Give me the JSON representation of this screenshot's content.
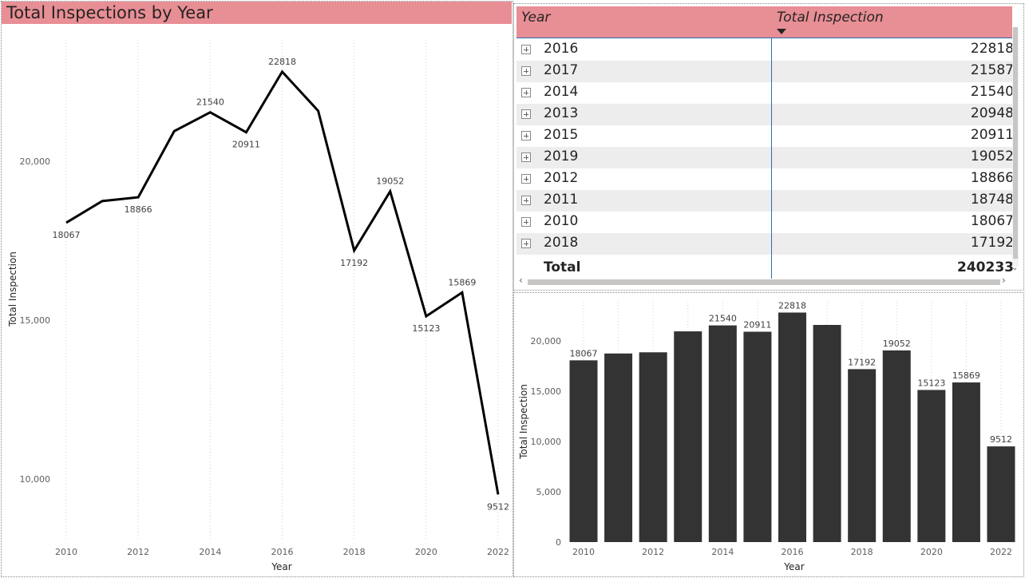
{
  "line_chart": {
    "title": "Total Inspections by Year"
  },
  "table": {
    "headers": {
      "year": "Year",
      "total": "Total Inspection"
    },
    "rows": [
      {
        "year": "2016",
        "total": "22818"
      },
      {
        "year": "2017",
        "total": "21587"
      },
      {
        "year": "2014",
        "total": "21540"
      },
      {
        "year": "2013",
        "total": "20948"
      },
      {
        "year": "2015",
        "total": "20911"
      },
      {
        "year": "2019",
        "total": "19052"
      },
      {
        "year": "2012",
        "total": "18866"
      },
      {
        "year": "2011",
        "total": "18748"
      },
      {
        "year": "2010",
        "total": "18067"
      },
      {
        "year": "2018",
        "total": "17192"
      }
    ],
    "total_label": "Total",
    "total_value": "240233"
  },
  "chart_data": [
    {
      "type": "line",
      "title": "Total Inspections by Year",
      "xlabel": "Year",
      "ylabel": "Total Inspection",
      "x": [
        2010,
        2011,
        2012,
        2013,
        2014,
        2015,
        2016,
        2017,
        2018,
        2019,
        2020,
        2021,
        2022
      ],
      "values": [
        18067,
        18748,
        18866,
        20948,
        21540,
        20911,
        22818,
        21587,
        17192,
        19052,
        15123,
        15869,
        9512
      ],
      "labeled": [
        true,
        false,
        true,
        false,
        true,
        true,
        true,
        false,
        true,
        true,
        true,
        true,
        true
      ],
      "xticks": [
        "2010",
        "2012",
        "2014",
        "2016",
        "2018",
        "2020",
        "2022"
      ],
      "yticks": [
        "10,000",
        "15,000",
        "20,000"
      ],
      "ylim": [
        8000,
        24000
      ],
      "grid": "dotted-vertical",
      "color": "#000000"
    },
    {
      "type": "bar",
      "xlabel": "Year",
      "ylabel": "Total Inspection",
      "x": [
        2010,
        2011,
        2012,
        2013,
        2014,
        2015,
        2016,
        2017,
        2018,
        2019,
        2020,
        2021,
        2022
      ],
      "values": [
        18067,
        18748,
        18866,
        20948,
        21540,
        20911,
        22818,
        21587,
        17192,
        19052,
        15123,
        15869,
        9512
      ],
      "labeled": [
        true,
        false,
        false,
        false,
        true,
        true,
        true,
        false,
        true,
        true,
        true,
        true,
        true
      ],
      "xticks": [
        "2010",
        "2012",
        "2014",
        "2016",
        "2018",
        "2020",
        "2022"
      ],
      "yticks": [
        "0",
        "5,000",
        "10,000",
        "15,000",
        "20,000"
      ],
      "ylim": [
        0,
        24000
      ],
      "grid": "dotted-vertical",
      "color": "#333333"
    }
  ]
}
